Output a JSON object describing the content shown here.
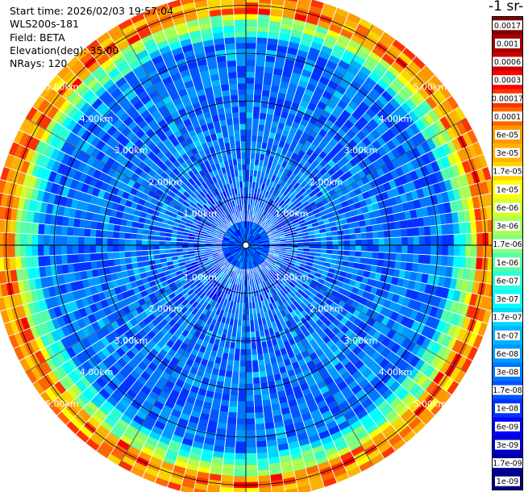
{
  "header": {
    "start_time": "Start time: 2026/02/03 19:57:04",
    "instrument": "WLS200s-181",
    "field": "Field: BETA",
    "elevation": "Elevation(deg): 35.00",
    "nrays": "NRays: 120"
  },
  "colorbar": {
    "title": "-1 sr-",
    "labels": [
      "0.0017",
      "0.001",
      "0.0006",
      "0.0003",
      "0.00017",
      "0.0001",
      "6e-05",
      "3e-05",
      "1.7e-05",
      "1e-05",
      "6e-06",
      "3e-06",
      "1.7e-06",
      "1e-06",
      "6e-07",
      "3e-07",
      "1.7e-07",
      "1e-07",
      "6e-08",
      "3e-08",
      "1.7e-08",
      "1e-08",
      "6e-09",
      "3e-09",
      "1.7e-09",
      "1e-09"
    ],
    "colors": [
      "#7f0000",
      "#a50000",
      "#cc0000",
      "#ff0000",
      "#ff3300",
      "#ff6600",
      "#ff9900",
      "#ffb300",
      "#ffd500",
      "#ffff00",
      "#d5ff2b",
      "#aaff55",
      "#80ff80",
      "#55ffaa",
      "#2bffd5",
      "#00ffff",
      "#00d5ff",
      "#00b3ff",
      "#0099ff",
      "#0077ff",
      "#0055ff",
      "#0033ff",
      "#0000ff",
      "#0000cc",
      "#000099",
      "#00007f"
    ]
  },
  "chart_data": {
    "type": "heatmap",
    "projection": "polar (PPI scan)",
    "field": "BETA",
    "nrays": 120,
    "range_rings_km": [
      1,
      2,
      3,
      4,
      5
    ],
    "range_ring_labels": [
      "1.00km",
      "2.00km",
      "3.00km",
      "4.00km",
      "5.00km"
    ],
    "max_range_km": 5.3,
    "colorscale": "log, jet-like",
    "color_range": [
      1e-09,
      0.0017
    ],
    "pattern": "mostly 1e-08 to 6e-08 (blue) inside 4km; 1e-05 to 0.0003 (yellow/red) in outer ring near 5km"
  }
}
